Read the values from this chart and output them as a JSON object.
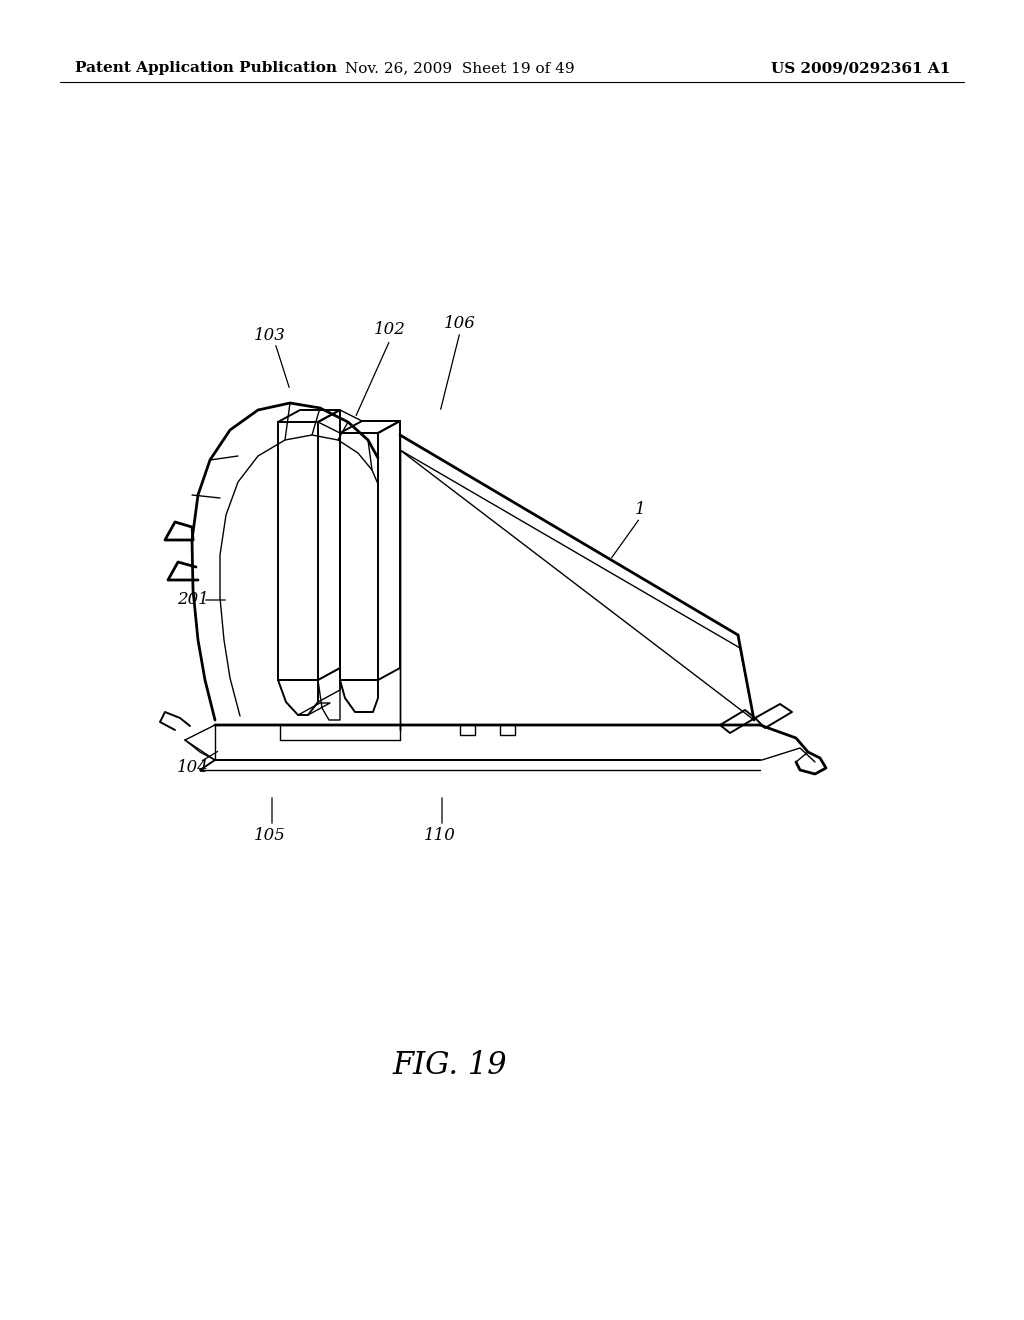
{
  "background_color": "#ffffff",
  "header_left": "Patent Application Publication",
  "header_center": "Nov. 26, 2009  Sheet 19 of 49",
  "header_right": "US 2009/0292361 A1",
  "header_fontsize": 11,
  "fig_caption": "FIG. 19",
  "fig_caption_fontsize": 22
}
